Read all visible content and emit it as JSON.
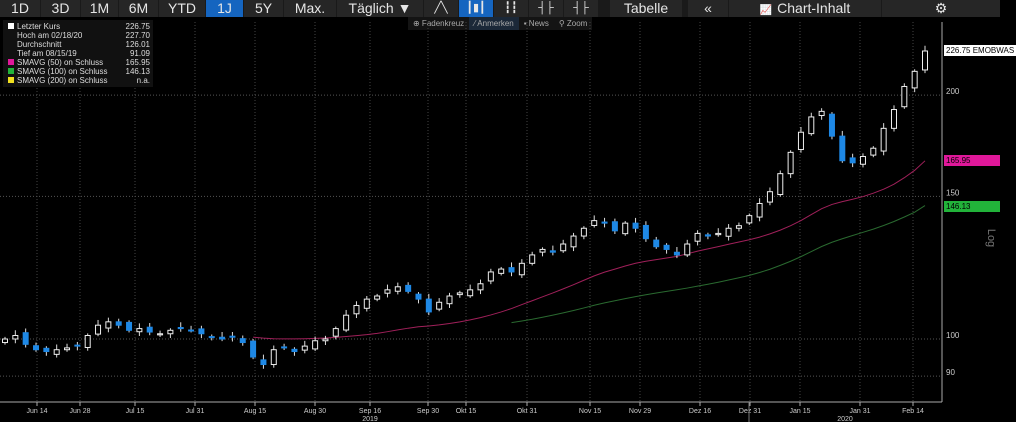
{
  "toolbar": {
    "ranges": [
      "1D",
      "3D",
      "1M",
      "6M",
      "YTD",
      "1J",
      "5Y",
      "Max."
    ],
    "active_range": "1J",
    "interval": "Täglich ▼",
    "chart_types": [
      "line-chart-icon",
      "candlestick-icon",
      "bar-chart-icon",
      "hlc-icon",
      "ohlc-icon"
    ],
    "table": "Tabelle",
    "collapse": "«",
    "content": "Chart-Inhalt"
  },
  "subbar": {
    "items": [
      "Fadenkreuz",
      "Anmerken",
      "News",
      "Zoom"
    ],
    "active": "Anmerken"
  },
  "legend": [
    {
      "label": "Letzter Kurs",
      "value": "226.75",
      "color": "#ffffff"
    },
    {
      "label": "Hoch am 02/18/20",
      "value": "227.70",
      "color": ""
    },
    {
      "label": "Durchschnitt",
      "value": "126.01",
      "color": ""
    },
    {
      "label": "Tief am 08/15/19",
      "value": "91.09",
      "color": ""
    },
    {
      "label": "SMAVG (50)  on Schluss",
      "value": "165.95",
      "color": "#e0189a"
    },
    {
      "label": "SMAVG (100)  on Schluss",
      "value": "146.13",
      "color": "#22b33a"
    },
    {
      "label": "SMAVG (200)  on Schluss",
      "value": "n.a.",
      "color": "#f0e020"
    }
  ],
  "tags": {
    "last": "226.75 EMOBWAS",
    "sma50": "165.95",
    "sma100": "146.13",
    "scale": "Log"
  },
  "chart_data": {
    "type": "candlestick",
    "scale": "log",
    "ylim": [
      82,
      250
    ],
    "yticks": [
      90,
      100,
      150,
      200
    ],
    "xticks": [
      "Jun 14",
      "Jun 28",
      "Jul 15",
      "Jul 31",
      "Aug 15",
      "Aug 30",
      "Sep 16",
      "Sep 30",
      "Okt 15",
      "Okt 31",
      "Nov 15",
      "Nov 29",
      "Dez 16",
      "Dez 31",
      "Jan 15",
      "Jan 31",
      "Feb 14"
    ],
    "years": [
      "2019",
      "2020"
    ],
    "closes": [
      100,
      101,
      98.5,
      97,
      96.5,
      97,
      97.5,
      98,
      101,
      104,
      105,
      104,
      102.5,
      103,
      102,
      101.5,
      102.5,
      103,
      102.5,
      101.5,
      100.5,
      100,
      100.5,
      99,
      95,
      93,
      97,
      97.5,
      96.5,
      98,
      99.5,
      100,
      103,
      107,
      110,
      112,
      113,
      115,
      116,
      114.5,
      112,
      108,
      111,
      113,
      114,
      115,
      117,
      121,
      122,
      121,
      124,
      127,
      129,
      128,
      131,
      134,
      137,
      140,
      139,
      136,
      139,
      137,
      133,
      130,
      129,
      127,
      131,
      135,
      134,
      135,
      137,
      138,
      142,
      147,
      152,
      160,
      170,
      180,
      188,
      191,
      178,
      166,
      165,
      168,
      172,
      182,
      192,
      205,
      214,
      226.75
    ],
    "series": [
      {
        "name": "SMAVG (50)",
        "last": 165.95,
        "color": "#a0205a"
      },
      {
        "name": "SMAVG (100)",
        "last": 146.13,
        "color": "#2a6a30"
      }
    ]
  }
}
